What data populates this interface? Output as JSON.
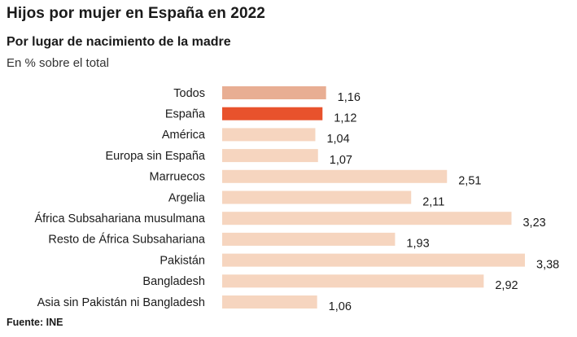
{
  "header": {
    "title": "Hijos por mujer en España en 2022",
    "subtitle": "Por lugar de nacimiento de la madre",
    "unit_note": "En % sobre el total"
  },
  "footer": {
    "source": "Fuente: INE"
  },
  "colors": {
    "highlight": "#e8522c",
    "total": "#e8ae93",
    "default": "#f6d5bf"
  },
  "chart_data": {
    "type": "bar",
    "orientation": "horizontal",
    "title": "Hijos por mujer en España en 2022",
    "subtitle": "Por lugar de nacimiento de la madre",
    "xlabel": "",
    "ylabel": "",
    "xlim": [
      0,
      3.38
    ],
    "grid": false,
    "legend": "none",
    "categories": [
      "Todos",
      "España",
      "América",
      "Europa sin España",
      "Marruecos",
      "Argelia",
      "África Subsahariana musulmana",
      "Resto de África Subsahariana",
      "Pakistán",
      "Bangladesh",
      "Asia sin Pakistán ni Bangladesh"
    ],
    "values": [
      1.16,
      1.12,
      1.04,
      1.07,
      2.51,
      2.11,
      3.23,
      1.93,
      3.38,
      2.92,
      1.06
    ],
    "value_labels": [
      "1,16",
      "1,12",
      "1,04",
      "1,07",
      "2,51",
      "2,11",
      "3,23",
      "1,93",
      "3,38",
      "2,92",
      "1,06"
    ],
    "bar_colors": [
      "total",
      "highlight",
      "default",
      "default",
      "default",
      "default",
      "default",
      "default",
      "default",
      "default",
      "default"
    ]
  }
}
